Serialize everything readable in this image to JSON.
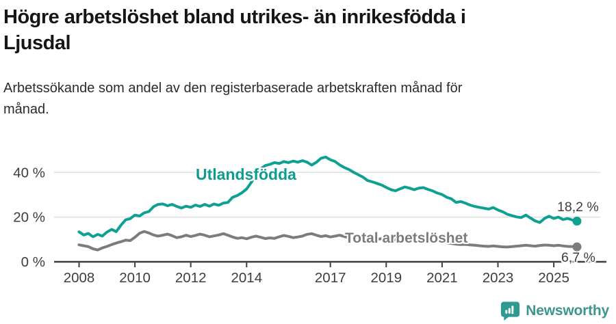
{
  "title": {
    "lines": [
      "Högre arbetslöshet bland utrikes- än inrikesfödda i",
      "Ljusdal"
    ]
  },
  "subtitle": {
    "lines": [
      "Arbetssökande som andel av den registerbaserade arbetskraften månad för",
      "månad."
    ]
  },
  "footer": {
    "brand": "Newsworthy",
    "logo_icon": "speech-bubble-bar-chart-icon"
  },
  "colors": {
    "foreign_series": "#0ea092",
    "total_series": "#7c7c7c",
    "grid": "#dcdcdc",
    "axis": "#3d3d3d",
    "tick_text": "#3d3d3d",
    "brand": "#3e948e"
  },
  "chart_data": {
    "type": "line",
    "x_unit": "year-month",
    "ylim": [
      0,
      48
    ],
    "xlim": [
      2007.6,
      2026.4
    ],
    "grid": "horizontal",
    "y_ticks": [
      {
        "value": 0,
        "label": "0 %"
      },
      {
        "value": 20,
        "label": "20 %"
      },
      {
        "value": 40,
        "label": "40 %"
      }
    ],
    "x_ticks": [
      {
        "year": 2008,
        "label": "2008"
      },
      {
        "year": 2010,
        "label": "2010"
      },
      {
        "year": 2012,
        "label": "2012"
      },
      {
        "year": 2014,
        "label": "2014"
      },
      {
        "year": 2017,
        "label": "2017"
      },
      {
        "year": 2019,
        "label": "2019"
      },
      {
        "year": 2021,
        "label": "2021"
      },
      {
        "year": 2023,
        "label": "2023"
      },
      {
        "year": 2025,
        "label": "2025"
      }
    ],
    "series": [
      {
        "name": "Utlandsfödda",
        "color": "#0ea092",
        "end_value": 18.2,
        "end_label": "18,2 %",
        "points": [
          [
            2008.0,
            13.4
          ],
          [
            2008.17,
            12.0
          ],
          [
            2008.33,
            12.7
          ],
          [
            2008.5,
            11.2
          ],
          [
            2008.67,
            12.3
          ],
          [
            2008.83,
            11.5
          ],
          [
            2009.0,
            13.3
          ],
          [
            2009.17,
            14.5
          ],
          [
            2009.33,
            13.5
          ],
          [
            2009.5,
            16.4
          ],
          [
            2009.67,
            18.8
          ],
          [
            2009.83,
            19.3
          ],
          [
            2010.0,
            20.9
          ],
          [
            2010.17,
            20.5
          ],
          [
            2010.33,
            21.9
          ],
          [
            2010.5,
            22.5
          ],
          [
            2010.67,
            24.7
          ],
          [
            2010.83,
            25.7
          ],
          [
            2011.0,
            25.9
          ],
          [
            2011.17,
            25.1
          ],
          [
            2011.33,
            25.7
          ],
          [
            2011.5,
            24.8
          ],
          [
            2011.67,
            24.1
          ],
          [
            2011.83,
            24.9
          ],
          [
            2012.0,
            24.4
          ],
          [
            2012.17,
            25.4
          ],
          [
            2012.33,
            24.8
          ],
          [
            2012.5,
            25.7
          ],
          [
            2012.67,
            24.9
          ],
          [
            2012.83,
            25.9
          ],
          [
            2013.0,
            25.3
          ],
          [
            2013.17,
            26.3
          ],
          [
            2013.33,
            26.6
          ],
          [
            2013.5,
            28.9
          ],
          [
            2013.67,
            29.7
          ],
          [
            2013.83,
            30.9
          ],
          [
            2014.0,
            32.6
          ],
          [
            2014.17,
            35.6
          ],
          [
            2014.33,
            38.6
          ],
          [
            2014.5,
            41.6
          ],
          [
            2014.67,
            43.1
          ],
          [
            2014.83,
            43.6
          ],
          [
            2015.0,
            44.4
          ],
          [
            2015.17,
            44.0
          ],
          [
            2015.33,
            44.9
          ],
          [
            2015.5,
            44.4
          ],
          [
            2015.67,
            45.1
          ],
          [
            2015.83,
            44.6
          ],
          [
            2016.0,
            45.3
          ],
          [
            2016.17,
            44.6
          ],
          [
            2016.33,
            43.3
          ],
          [
            2016.5,
            44.6
          ],
          [
            2016.67,
            46.4
          ],
          [
            2016.83,
            46.9
          ],
          [
            2017.0,
            45.7
          ],
          [
            2017.17,
            44.9
          ],
          [
            2017.33,
            43.4
          ],
          [
            2017.5,
            42.2
          ],
          [
            2017.67,
            41.3
          ],
          [
            2017.83,
            40.1
          ],
          [
            2018.0,
            39.0
          ],
          [
            2018.17,
            37.9
          ],
          [
            2018.33,
            36.4
          ],
          [
            2018.5,
            35.8
          ],
          [
            2018.67,
            35.1
          ],
          [
            2018.83,
            34.4
          ],
          [
            2019.0,
            33.3
          ],
          [
            2019.17,
            32.3
          ],
          [
            2019.33,
            31.8
          ],
          [
            2019.5,
            32.7
          ],
          [
            2019.67,
            33.5
          ],
          [
            2019.83,
            33.0
          ],
          [
            2020.0,
            32.3
          ],
          [
            2020.17,
            33.0
          ],
          [
            2020.33,
            33.2
          ],
          [
            2020.5,
            32.4
          ],
          [
            2020.67,
            31.7
          ],
          [
            2020.83,
            30.8
          ],
          [
            2021.0,
            30.1
          ],
          [
            2021.17,
            28.9
          ],
          [
            2021.33,
            28.2
          ],
          [
            2021.5,
            26.6
          ],
          [
            2021.67,
            27.0
          ],
          [
            2021.83,
            26.3
          ],
          [
            2022.0,
            25.4
          ],
          [
            2022.17,
            24.8
          ],
          [
            2022.33,
            24.4
          ],
          [
            2022.5,
            24.0
          ],
          [
            2022.67,
            23.6
          ],
          [
            2022.83,
            24.3
          ],
          [
            2023.0,
            23.2
          ],
          [
            2023.17,
            22.4
          ],
          [
            2023.33,
            21.3
          ],
          [
            2023.5,
            20.7
          ],
          [
            2023.67,
            20.1
          ],
          [
            2023.83,
            19.8
          ],
          [
            2024.0,
            20.9
          ],
          [
            2024.17,
            19.6
          ],
          [
            2024.33,
            18.3
          ],
          [
            2024.5,
            17.6
          ],
          [
            2024.67,
            19.4
          ],
          [
            2024.83,
            20.4
          ],
          [
            2025.0,
            19.4
          ],
          [
            2025.17,
            20.0
          ],
          [
            2025.33,
            18.9
          ],
          [
            2025.5,
            19.4
          ],
          [
            2025.67,
            18.7
          ],
          [
            2025.83,
            18.2
          ]
        ]
      },
      {
        "name": "Total arbetslöshet",
        "color": "#7c7c7c",
        "end_value": 6.7,
        "end_label": "6,7 %",
        "points": [
          [
            2008.0,
            7.6
          ],
          [
            2008.17,
            7.2
          ],
          [
            2008.33,
            6.8
          ],
          [
            2008.5,
            5.8
          ],
          [
            2008.67,
            5.3
          ],
          [
            2008.83,
            6.2
          ],
          [
            2009.0,
            6.9
          ],
          [
            2009.17,
            7.7
          ],
          [
            2009.33,
            8.4
          ],
          [
            2009.5,
            9.0
          ],
          [
            2009.67,
            9.7
          ],
          [
            2009.83,
            9.5
          ],
          [
            2010.0,
            11.0
          ],
          [
            2010.17,
            12.8
          ],
          [
            2010.33,
            13.6
          ],
          [
            2010.5,
            12.9
          ],
          [
            2010.67,
            12.0
          ],
          [
            2010.83,
            11.5
          ],
          [
            2011.0,
            11.9
          ],
          [
            2011.17,
            12.4
          ],
          [
            2011.33,
            11.7
          ],
          [
            2011.5,
            10.8
          ],
          [
            2011.67,
            11.2
          ],
          [
            2011.83,
            11.9
          ],
          [
            2012.0,
            11.3
          ],
          [
            2012.17,
            11.8
          ],
          [
            2012.33,
            12.4
          ],
          [
            2012.5,
            11.9
          ],
          [
            2012.67,
            11.2
          ],
          [
            2012.83,
            11.6
          ],
          [
            2013.0,
            12.0
          ],
          [
            2013.17,
            12.6
          ],
          [
            2013.33,
            11.9
          ],
          [
            2013.5,
            11.1
          ],
          [
            2013.67,
            10.5
          ],
          [
            2013.83,
            10.8
          ],
          [
            2014.0,
            10.3
          ],
          [
            2014.17,
            11.0
          ],
          [
            2014.33,
            11.5
          ],
          [
            2014.5,
            11.0
          ],
          [
            2014.67,
            10.4
          ],
          [
            2014.83,
            10.7
          ],
          [
            2015.0,
            10.5
          ],
          [
            2015.17,
            11.2
          ],
          [
            2015.33,
            11.8
          ],
          [
            2015.5,
            11.4
          ],
          [
            2015.67,
            10.8
          ],
          [
            2015.83,
            11.1
          ],
          [
            2016.0,
            11.5
          ],
          [
            2016.17,
            12.3
          ],
          [
            2016.33,
            12.6
          ],
          [
            2016.5,
            11.9
          ],
          [
            2016.67,
            11.3
          ],
          [
            2016.83,
            11.7
          ],
          [
            2017.0,
            11.1
          ],
          [
            2017.17,
            11.5
          ],
          [
            2017.33,
            11.9
          ],
          [
            2017.5,
            11.3
          ],
          [
            2017.67,
            10.7
          ],
          [
            2017.83,
            10.9
          ],
          [
            2018.0,
            10.4
          ],
          [
            2018.17,
            10.8
          ],
          [
            2018.33,
            11.1
          ],
          [
            2018.5,
            10.6
          ],
          [
            2018.67,
            10.1
          ],
          [
            2018.83,
            10.3
          ],
          [
            2019.0,
            9.8
          ],
          [
            2019.17,
            9.5
          ],
          [
            2019.33,
            9.9
          ],
          [
            2019.5,
            9.4
          ],
          [
            2019.67,
            9.1
          ],
          [
            2019.83,
            9.3
          ],
          [
            2020.0,
            9.6
          ],
          [
            2020.17,
            10.0
          ],
          [
            2020.33,
            10.2
          ],
          [
            2020.5,
            9.7
          ],
          [
            2020.67,
            9.3
          ],
          [
            2020.83,
            9.0
          ],
          [
            2021.0,
            8.8
          ],
          [
            2021.17,
            8.5
          ],
          [
            2021.33,
            8.2
          ],
          [
            2021.5,
            7.9
          ],
          [
            2021.67,
            7.7
          ],
          [
            2021.83,
            7.8
          ],
          [
            2022.0,
            7.6
          ],
          [
            2022.17,
            7.4
          ],
          [
            2022.33,
            7.2
          ],
          [
            2022.5,
            7.0
          ],
          [
            2022.67,
            6.9
          ],
          [
            2022.83,
            7.1
          ],
          [
            2023.0,
            6.9
          ],
          [
            2023.17,
            6.7
          ],
          [
            2023.33,
            6.6
          ],
          [
            2023.5,
            6.8
          ],
          [
            2023.67,
            7.0
          ],
          [
            2023.83,
            7.2
          ],
          [
            2024.0,
            7.4
          ],
          [
            2024.17,
            7.2
          ],
          [
            2024.33,
            7.0
          ],
          [
            2024.5,
            7.3
          ],
          [
            2024.67,
            7.5
          ],
          [
            2024.83,
            7.4
          ],
          [
            2025.0,
            7.2
          ],
          [
            2025.17,
            7.4
          ],
          [
            2025.33,
            7.1
          ],
          [
            2025.5,
            6.9
          ],
          [
            2025.67,
            6.8
          ],
          [
            2025.83,
            6.7
          ]
        ]
      }
    ]
  }
}
